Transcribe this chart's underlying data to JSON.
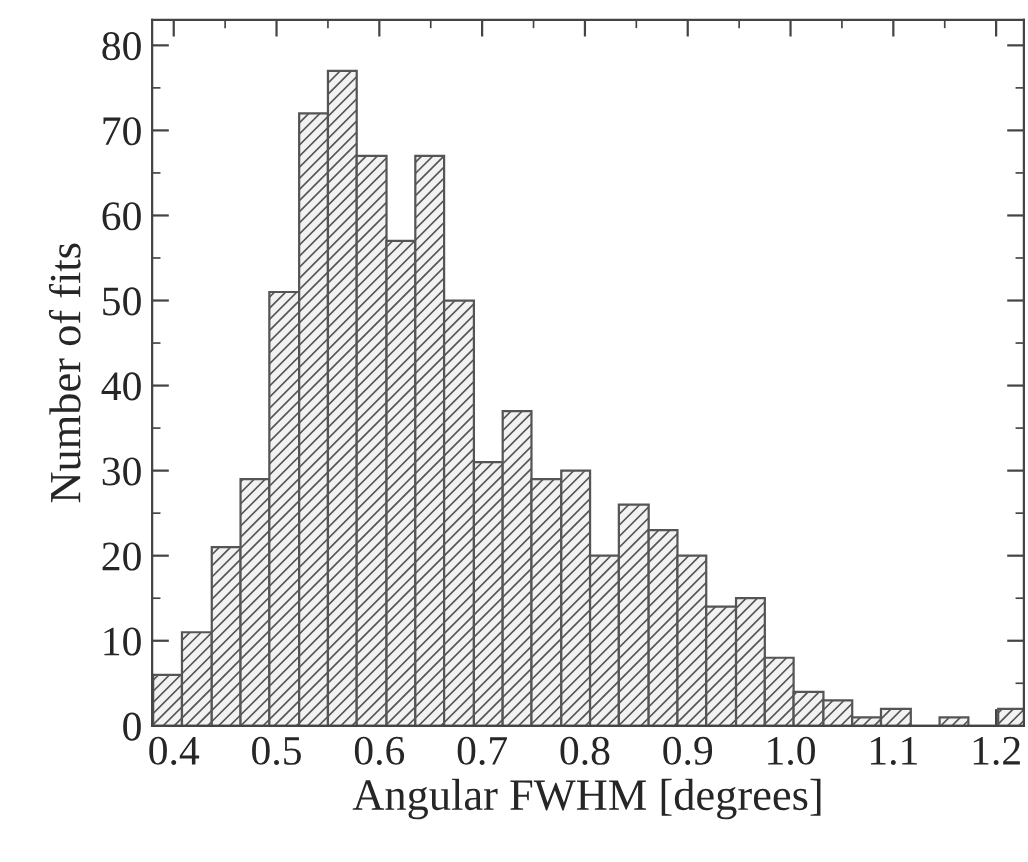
{
  "chart_data": {
    "type": "histogram",
    "xlabel": "Angular FWHM [degrees]",
    "ylabel": "Number of fits",
    "bins": [
      0.38,
      0.408,
      0.437,
      0.465,
      0.493,
      0.522,
      0.55,
      0.578,
      0.607,
      0.635,
      0.663,
      0.692,
      0.72,
      0.748,
      0.777,
      0.805,
      0.833,
      0.862,
      0.89,
      0.918,
      0.947,
      0.975,
      1.003,
      1.032,
      1.06,
      1.088,
      1.117,
      1.145,
      1.173,
      1.202,
      1.23
    ],
    "values": [
      6,
      11,
      21,
      29,
      51,
      72,
      77,
      67,
      57,
      67,
      50,
      31,
      37,
      29,
      30,
      20,
      26,
      23,
      20,
      14,
      15,
      8,
      4,
      3,
      1,
      2,
      0,
      1,
      0,
      2
    ],
    "color": "#555555",
    "xlim": [
      0.379,
      1.227
    ],
    "ylim": [
      0,
      83
    ],
    "xticks": [
      {
        "value": 0.4,
        "label": "0.4"
      },
      {
        "value": 0.5,
        "label": "0.5"
      },
      {
        "value": 0.6,
        "label": "0.6"
      },
      {
        "value": 0.7,
        "label": "0.7"
      },
      {
        "value": 0.8,
        "label": "0.8"
      },
      {
        "value": 0.9,
        "label": "0.9"
      },
      {
        "value": 1.0,
        "label": "1.0"
      },
      {
        "value": 1.1,
        "label": "1.1"
      },
      {
        "value": 1.2,
        "label": "1.2"
      }
    ],
    "yticks": [
      0,
      10,
      20,
      30,
      40,
      50,
      60,
      70,
      80
    ],
    "grid": false,
    "legend": false
  }
}
